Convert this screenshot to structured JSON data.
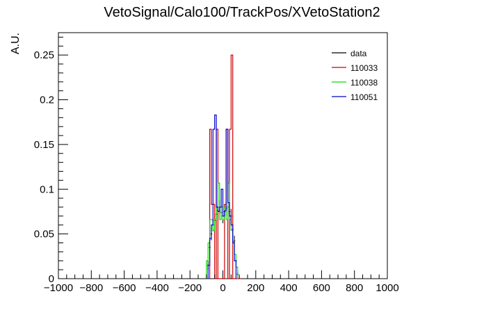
{
  "chart_data": {
    "type": "line",
    "title": "VetoSignal/Calo100/TrackPos/XVetoStation2",
    "xlabel": "",
    "ylabel": "A.U.",
    "xlim": [
      -1000,
      1000
    ],
    "ylim": [
      0,
      0.275
    ],
    "xticks": [
      -1000,
      -800,
      -600,
      -400,
      -200,
      0,
      200,
      400,
      600,
      800,
      1000
    ],
    "yticks": [
      0,
      0.05,
      0.1,
      0.15,
      0.2,
      0.25
    ],
    "xtick_labels": [
      "−1000",
      "−800",
      "−600",
      "−400",
      "−200",
      "0",
      "200",
      "400",
      "600",
      "800",
      "1000"
    ],
    "ytick_labels": [
      "0",
      "0.05",
      "0.1",
      "0.15",
      "0.2",
      "0.25"
    ],
    "grid": false,
    "legend_position": "top-right",
    "series": [
      {
        "name": "data",
        "color": "#000000",
        "style": "errorbar",
        "x": [
          -90,
          -80,
          -70,
          -60,
          -50,
          -40,
          -30,
          -20,
          -10,
          0,
          10,
          20,
          30,
          40,
          50,
          60,
          70,
          80,
          90
        ],
        "y": [
          0.015,
          0.035,
          0.05,
          0.06,
          0.065,
          0.072,
          0.076,
          0.08,
          0.074,
          0.07,
          0.075,
          0.078,
          0.08,
          0.075,
          0.07,
          0.055,
          0.042,
          0.02,
          0.005
        ],
        "yerr": [
          0.005,
          0.006,
          0.007,
          0.007,
          0.007,
          0.008,
          0.008,
          0.008,
          0.008,
          0.008,
          0.008,
          0.008,
          0.008,
          0.008,
          0.008,
          0.007,
          0.006,
          0.005,
          0.003
        ]
      },
      {
        "name": "110033",
        "color": "#cc0000",
        "style": "step",
        "edges": [
          -80,
          -70,
          -60,
          -50,
          -40,
          -30,
          -20,
          -10,
          0,
          10,
          20,
          30,
          40,
          50,
          60,
          70,
          80,
          90,
          100,
          110
        ],
        "values": [
          0.167,
          0.083,
          0.083,
          0,
          0.167,
          0,
          0,
          0,
          0,
          0.083,
          0.167,
          0,
          0.167,
          0.25,
          0,
          0,
          0,
          0,
          0
        ]
      },
      {
        "name": "110038",
        "color": "#00dd00",
        "style": "step",
        "edges": [
          -100,
          -90,
          -80,
          -70,
          -60,
          -50,
          -40,
          -30,
          -20,
          -10,
          0,
          10,
          20,
          30,
          40,
          50,
          60,
          70,
          80,
          90
        ],
        "values": [
          0.02,
          0.04,
          0.066,
          0.066,
          0.054,
          0.066,
          0.08,
          0.107,
          0.066,
          0.08,
          0.066,
          0.08,
          0.066,
          0.107,
          0.066,
          0.054,
          0.04,
          0.027,
          0.013
        ]
      },
      {
        "name": "110051",
        "color": "#0000cc",
        "style": "step",
        "edges": [
          -90,
          -80,
          -70,
          -60,
          -50,
          -40,
          -30,
          -20,
          -10,
          0,
          10,
          20,
          30,
          40,
          50,
          60,
          70,
          80
        ],
        "values": [
          0.015,
          0.045,
          0.06,
          0.167,
          0.183,
          0.08,
          0.075,
          0.08,
          0.1,
          0.07,
          0.076,
          0.167,
          0.085,
          0.07,
          0.06,
          0.04,
          0.02
        ]
      }
    ]
  }
}
